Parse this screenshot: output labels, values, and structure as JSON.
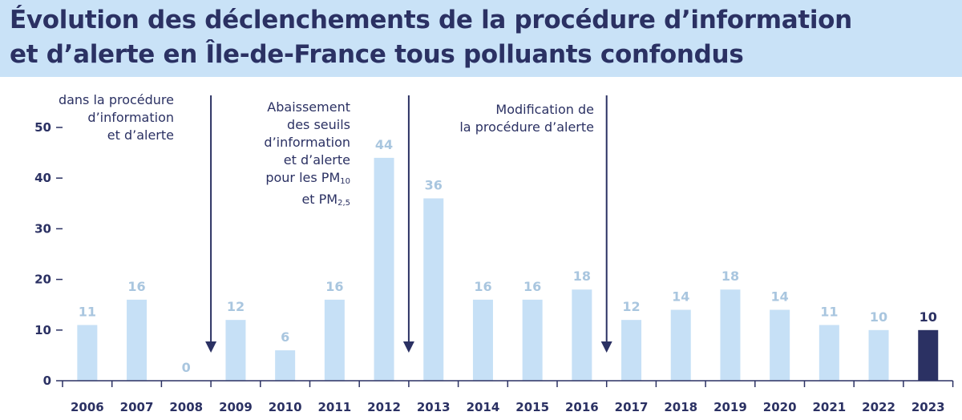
{
  "title_line1": "Évolution des déclenchements de la procédure d’information",
  "title_line2": "et d’alerte en Île-de-France tous polluants confondus",
  "annotations": {
    "a2008": [
      "dans la procédure",
      "d’information",
      "et d’alerte"
    ],
    "a2012": {
      "lines": [
        "Abaissement",
        "des seuils",
        "d’information",
        "et d’alerte"
      ],
      "pm_line": {
        "prefix": "pour les PM",
        "sub": "10"
      },
      "pm_line2": {
        "prefix": "et PM",
        "sub": "2,5"
      }
    },
    "a2016": [
      "Modification de",
      "la procédure d’alerte"
    ]
  },
  "colors": {
    "header_bg": "#c9e2f7",
    "text": "#2b3163",
    "bar": "#c6e0f6",
    "bar_highlight": "#2b3163",
    "value_label": "#a9c6df"
  },
  "chart_data": {
    "type": "bar",
    "categories": [
      "2006",
      "2007",
      "2008",
      "2009",
      "2010",
      "2011",
      "2012",
      "2013",
      "2014",
      "2015",
      "2016",
      "2017",
      "2018",
      "2019",
      "2020",
      "2021",
      "2022",
      "2023"
    ],
    "values": [
      11,
      16,
      0,
      12,
      6,
      16,
      44,
      36,
      16,
      16,
      18,
      12,
      14,
      18,
      14,
      11,
      10,
      10
    ],
    "highlight_category": "2023",
    "ylim": [
      0,
      50
    ],
    "yticks": [
      0,
      10,
      20,
      30,
      40,
      50
    ],
    "grid": false,
    "events": [
      {
        "after_category": "2008",
        "annotation": "a2008"
      },
      {
        "after_category": "2012",
        "annotation": "a2012"
      },
      {
        "after_category": "2016",
        "annotation": "a2016"
      }
    ]
  }
}
